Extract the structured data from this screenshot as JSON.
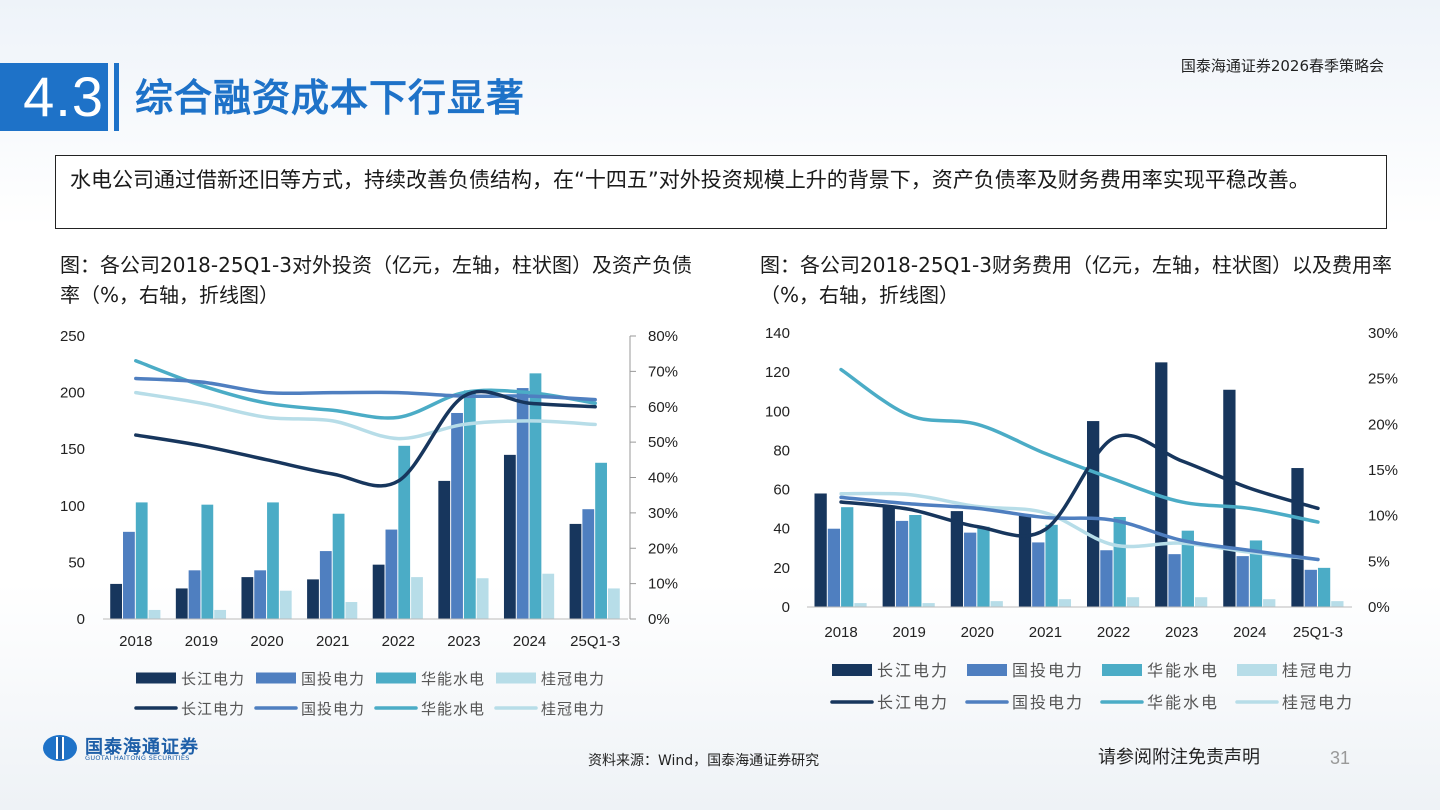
{
  "header": {
    "section_number": "4.3",
    "title": "综合融资成本下行显著",
    "event": "国泰海通证券2026春季策略会"
  },
  "summary": "水电公司通过借新还旧等方式，持续改善负债结构，在“十四五”对外投资规模上升的背景下，资产负债率及财务费用率实现平稳改善。",
  "colors": {
    "changjiang": "#17365d",
    "guotou": "#4f7fc0",
    "huaneng": "#4bacc6",
    "guiguan": "#b7dde8"
  },
  "chart_left": {
    "caption": "图：各公司2018-25Q1-3对外投资（亿元，左轴，柱状图）及资产负债率（%，右轴，折线图）"
  },
  "chart_right": {
    "caption": "图：各公司2018-25Q1-3财务费用（亿元，左轴，柱状图）以及费用率（%，右轴，折线图）"
  },
  "chart_data": [
    {
      "type": "bar",
      "categories": [
        "2018",
        "2019",
        "2020",
        "2021",
        "2022",
        "2023",
        "2024",
        "25Q1-3"
      ],
      "series": [
        {
          "name": "长江电力",
          "type": "bar",
          "axis": "left",
          "values": [
            31,
            27,
            37,
            35,
            48,
            122,
            145,
            84
          ]
        },
        {
          "name": "国投电力",
          "type": "bar",
          "axis": "left",
          "values": [
            77,
            43,
            43,
            60,
            79,
            182,
            204,
            97
          ]
        },
        {
          "name": "华能水电",
          "type": "bar",
          "axis": "left",
          "values": [
            103,
            101,
            103,
            93,
            153,
            202,
            217,
            138
          ]
        },
        {
          "name": "桂冠电力",
          "type": "bar",
          "axis": "left",
          "values": [
            8,
            8,
            25,
            15,
            37,
            36,
            40,
            27
          ]
        },
        {
          "name": "长江电力",
          "type": "line",
          "axis": "right",
          "values": [
            0.52,
            0.49,
            0.45,
            0.41,
            0.39,
            0.63,
            0.61,
            0.6
          ]
        },
        {
          "name": "国投电力",
          "type": "line",
          "axis": "right",
          "values": [
            0.68,
            0.67,
            0.64,
            0.64,
            0.64,
            0.63,
            0.63,
            0.62
          ]
        },
        {
          "name": "华能水电",
          "type": "line",
          "axis": "right",
          "values": [
            0.73,
            0.66,
            0.61,
            0.59,
            0.57,
            0.64,
            0.64,
            0.61
          ]
        },
        {
          "name": "桂冠电力",
          "type": "line",
          "axis": "right",
          "values": [
            0.64,
            0.61,
            0.57,
            0.56,
            0.51,
            0.55,
            0.56,
            0.55
          ]
        }
      ],
      "y_left": {
        "min": 0,
        "max": 250,
        "ticks": [
          "0",
          "50",
          "100",
          "150",
          "200",
          "250"
        ]
      },
      "y_right": {
        "min": 0,
        "max": 0.8,
        "ticks": [
          "0%",
          "10%",
          "20%",
          "30%",
          "40%",
          "50%",
          "60%",
          "70%",
          "80%"
        ]
      },
      "legend_position": "bottom",
      "grid": false
    },
    {
      "type": "bar",
      "categories": [
        "2018",
        "2019",
        "2020",
        "2021",
        "2022",
        "2023",
        "2024",
        "25Q1-3"
      ],
      "series": [
        {
          "name": "长江电力",
          "type": "bar",
          "axis": "left",
          "values": [
            58,
            51,
            49,
            47,
            95,
            125,
            111,
            71
          ]
        },
        {
          "name": "国投电力",
          "type": "bar",
          "axis": "left",
          "values": [
            40,
            44,
            38,
            33,
            29,
            27,
            26,
            19
          ]
        },
        {
          "name": "华能水电",
          "type": "bar",
          "axis": "left",
          "values": [
            51,
            47,
            41,
            42,
            46,
            39,
            34,
            20
          ]
        },
        {
          "name": "桂冠电力",
          "type": "bar",
          "axis": "left",
          "values": [
            2,
            2,
            3,
            4,
            5,
            5,
            4,
            3
          ]
        },
        {
          "name": "长江电力",
          "type": "line",
          "axis": "right",
          "values": [
            0.115,
            0.107,
            0.088,
            0.085,
            0.185,
            0.16,
            0.13,
            0.108
          ]
        },
        {
          "name": "国投电力",
          "type": "line",
          "axis": "right",
          "values": [
            0.12,
            0.113,
            0.108,
            0.098,
            0.095,
            0.073,
            0.062,
            0.052
          ]
        },
        {
          "name": "华能水电",
          "type": "line",
          "axis": "right",
          "values": [
            0.26,
            0.21,
            0.2,
            0.168,
            0.14,
            0.115,
            0.108,
            0.093
          ]
        },
        {
          "name": "桂冠电力",
          "type": "line",
          "axis": "right",
          "values": [
            0.124,
            0.123,
            0.11,
            0.103,
            0.068,
            0.07,
            0.06,
            0.052
          ]
        }
      ],
      "y_left": {
        "min": 0,
        "max": 140,
        "ticks": [
          "0",
          "20",
          "40",
          "60",
          "80",
          "100",
          "120",
          "140"
        ]
      },
      "y_right": {
        "min": 0,
        "max": 0.3,
        "ticks": [
          "0%",
          "5%",
          "10%",
          "15%",
          "20%",
          "25%",
          "30%"
        ]
      },
      "legend_position": "bottom",
      "grid": false
    }
  ],
  "footer": {
    "logo_cn": "国泰海通证券",
    "logo_en": "GUOTAI HAITONG SECURITIES",
    "source": "资料来源：Wind，国泰海通证券研究",
    "disclaimer": "请参阅附注免责声明",
    "page_number": "31"
  }
}
